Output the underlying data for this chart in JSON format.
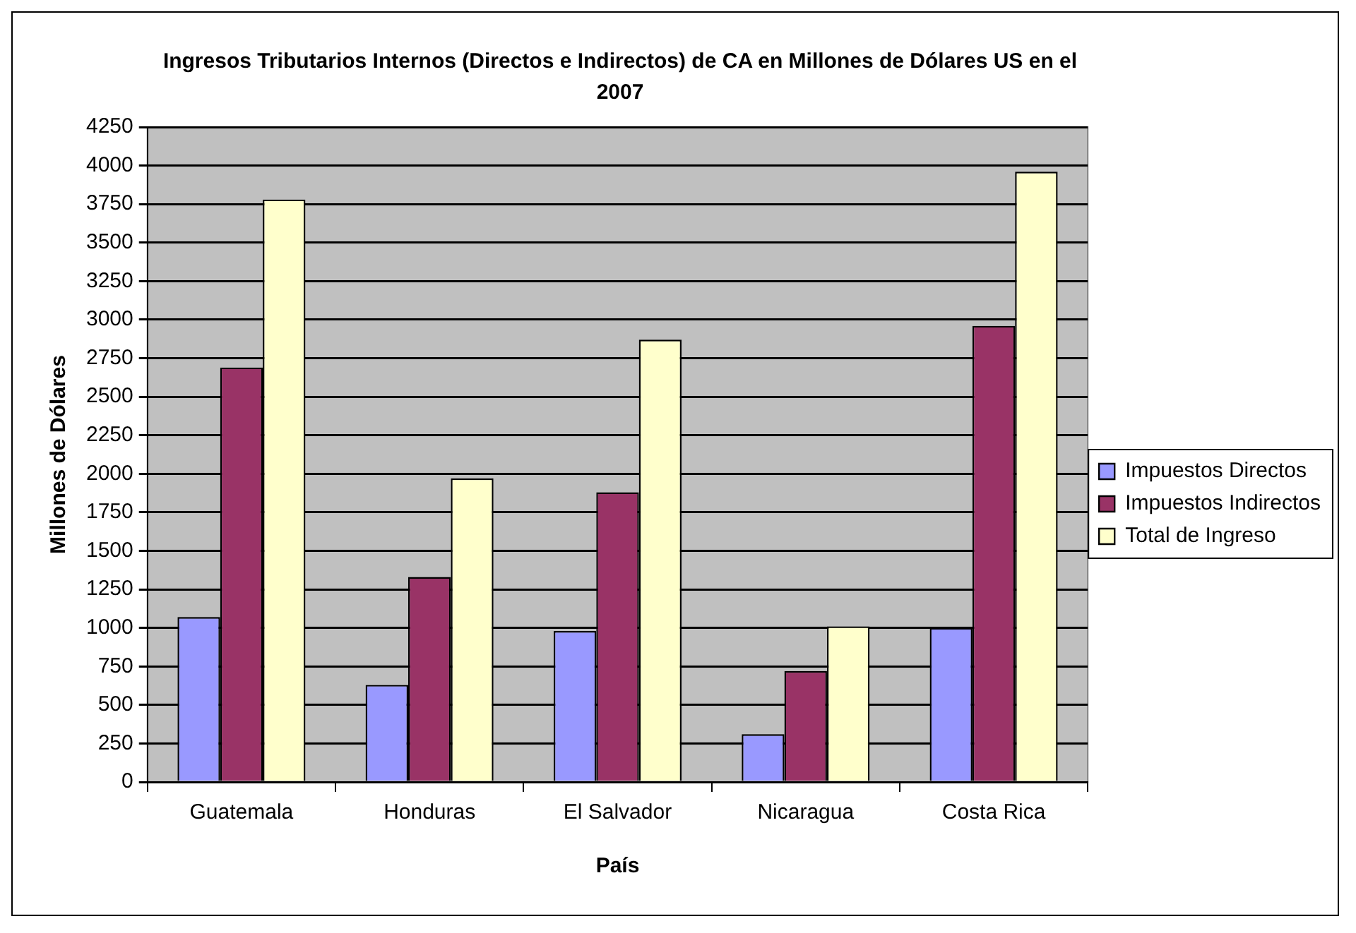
{
  "chart_data": {
    "type": "bar",
    "title": "Ingresos Tributarios Internos (Directos e Indirectos) de CA en Millones de Dólares US en el 2007",
    "xlabel": "País",
    "ylabel": "Millones de Dólares",
    "categories": [
      "Guatemala",
      "Honduras",
      "El Salvador",
      "Nicaragua",
      "Costa Rica"
    ],
    "series": [
      {
        "name": "Impuestos Directos",
        "color": "#9999ff",
        "values": [
          1070,
          630,
          980,
          310,
          1000
        ]
      },
      {
        "name": "Impuestos Indirectos",
        "color": "#993366",
        "values": [
          2690,
          1330,
          1880,
          720,
          2960
        ]
      },
      {
        "name": "Total de Ingreso",
        "color": "#ffffcc",
        "values": [
          3780,
          1970,
          2870,
          1010,
          3960
        ]
      }
    ],
    "ylim": [
      0,
      4250
    ],
    "yticks": [
      0,
      250,
      500,
      750,
      1000,
      1250,
      1500,
      1750,
      2000,
      2250,
      2500,
      2750,
      3000,
      3250,
      3500,
      3750,
      4000,
      4250
    ],
    "grid": "y",
    "legend": "right"
  }
}
